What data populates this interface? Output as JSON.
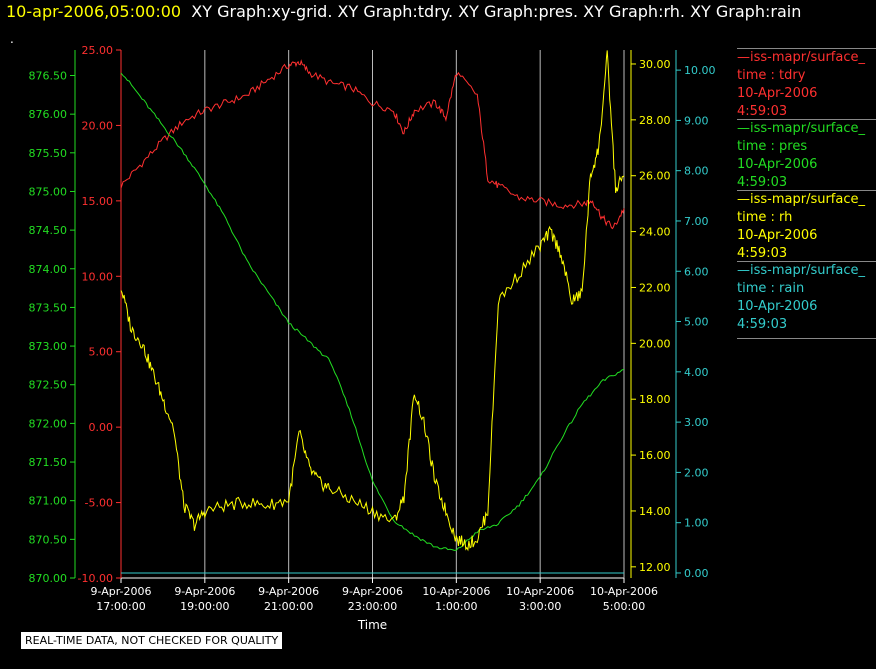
{
  "header": {
    "timestamp": "10-apr-2006,05:00:00",
    "titles": "XY Graph:xy-grid.  XY Graph:tdry.  XY Graph:pres.  XY Graph:rh.  XY Graph:rain"
  },
  "notice": "REAL-TIME DATA, NOT CHECKED FOR QUALITY",
  "legend": [
    {
      "source": "—iss-mapr/surface_",
      "label": "time : tdry",
      "date": "10-Apr-2006",
      "time": "4:59:03",
      "color": "#ff3030"
    },
    {
      "source": "—iss-mapr/surface_",
      "label": "time : pres",
      "date": "10-Apr-2006",
      "time": "4:59:03",
      "color": "#22dd22"
    },
    {
      "source": "—iss-mapr/surface_",
      "label": "time : rh",
      "date": "10-Apr-2006",
      "time": "4:59:03",
      "color": "#ffff00"
    },
    {
      "source": "—iss-mapr/surface_",
      "label": "time : rain",
      "date": "10-Apr-2006",
      "time": "4:59:03",
      "color": "#33cccc"
    }
  ],
  "chart_data": {
    "type": "line",
    "xlabel": "Time",
    "x_ticks": [
      {
        "date": "9-Apr-2006",
        "time": "17:00:00"
      },
      {
        "date": "9-Apr-2006",
        "time": "19:00:00"
      },
      {
        "date": "9-Apr-2006",
        "time": "21:00:00"
      },
      {
        "date": "9-Apr-2006",
        "time": "23:00:00"
      },
      {
        "date": "10-Apr-2006",
        "time": "1:00:00"
      },
      {
        "date": "10-Apr-2006",
        "time": "3:00:00"
      },
      {
        "date": "10-Apr-2006",
        "time": "5:00:00"
      }
    ],
    "x_hours": [
      17,
      19,
      21,
      23,
      25,
      27,
      29
    ],
    "xlim": [
      17,
      29
    ],
    "grid": "vertical",
    "axes": {
      "tdry": {
        "color": "#ff3030",
        "ylim": [
          -10,
          25
        ],
        "ticks": [
          "-10.00",
          "-5.00",
          "0.00",
          "5.00",
          "10.00",
          "15.00",
          "20.00",
          "25.00"
        ],
        "tick_values": [
          -10,
          -5,
          0,
          5,
          10,
          15,
          20,
          25
        ]
      },
      "pres": {
        "color": "#22dd22",
        "ylim": [
          870,
          876.83
        ],
        "ticks": [
          "870.00",
          "870.50",
          "871.00",
          "871.50",
          "872.00",
          "872.50",
          "873.00",
          "873.50",
          "874.00",
          "874.50",
          "875.00",
          "875.50",
          "876.00",
          "876.50"
        ],
        "tick_values": [
          870,
          870.5,
          871,
          871.5,
          872,
          872.5,
          873,
          873.5,
          874,
          874.5,
          875,
          875.5,
          876,
          876.5
        ]
      },
      "rh": {
        "color": "#ffff00",
        "ylim": [
          11.6,
          30.5
        ],
        "ticks": [
          "12.00",
          "14.00",
          "16.00",
          "18.00",
          "20.00",
          "22.00",
          "24.00",
          "26.00",
          "28.00",
          "30.00"
        ],
        "tick_values": [
          12,
          14,
          16,
          18,
          20,
          22,
          24,
          26,
          28,
          30
        ]
      },
      "rain": {
        "color": "#33cccc",
        "ylim": [
          -0.1,
          10.4
        ],
        "ticks": [
          "0.00",
          "1.00",
          "2.00",
          "3.00",
          "4.00",
          "5.00",
          "6.00",
          "7.00",
          "8.00",
          "9.00",
          "10.00"
        ],
        "tick_values": [
          0,
          1,
          2,
          3,
          4,
          5,
          6,
          7,
          8,
          9,
          10
        ]
      }
    },
    "series": [
      {
        "name": "time : tdry",
        "axis": "tdry",
        "x": [
          17,
          17.5,
          18,
          18.5,
          19,
          19.5,
          20,
          20.5,
          21,
          21.25,
          21.5,
          22,
          22.5,
          23,
          23.5,
          23.75,
          24,
          24.5,
          24.75,
          25,
          25.5,
          25.75,
          26,
          26.5,
          27,
          27.5,
          28,
          28.25,
          28.5,
          28.75,
          29
        ],
        "values": [
          16,
          17.5,
          19,
          20.3,
          21,
          21.5,
          22,
          23,
          24,
          24.2,
          23.5,
          22.8,
          22.5,
          21.5,
          21,
          19.5,
          21,
          21.5,
          20.5,
          23.5,
          22,
          16.5,
          16,
          15.2,
          15,
          14.7,
          14.8,
          15,
          13.8,
          13.2,
          14.5
        ]
      },
      {
        "name": "time : pres",
        "axis": "pres",
        "x": [
          17,
          17.5,
          18,
          18.5,
          19,
          19.5,
          20,
          20.5,
          21,
          21.5,
          22,
          22.5,
          23,
          23.5,
          24,
          24.5,
          25,
          25.5,
          26,
          26.5,
          27,
          27.5,
          28,
          28.5,
          29
        ],
        "values": [
          876.55,
          876.2,
          875.85,
          875.5,
          875.1,
          874.65,
          874.1,
          873.7,
          873.3,
          873.05,
          872.8,
          872.1,
          871.25,
          870.75,
          870.55,
          870.4,
          870.35,
          870.6,
          870.7,
          870.95,
          871.3,
          871.8,
          872.25,
          872.55,
          872.7
        ]
      },
      {
        "name": "time : rh",
        "axis": "rh",
        "x": [
          17,
          17.25,
          17.5,
          17.75,
          18,
          18.25,
          18.5,
          18.75,
          19,
          19.5,
          20,
          20.5,
          21,
          21.25,
          21.5,
          21.75,
          22,
          22.5,
          23,
          23.5,
          23.75,
          24,
          24.25,
          24.5,
          24.75,
          25,
          25.25,
          25.5,
          25.75,
          26,
          26.5,
          27,
          27.25,
          27.5,
          27.75,
          28,
          28.2,
          28.4,
          28.6,
          28.8,
          29
        ],
        "values": [
          22,
          20.5,
          20,
          19,
          18,
          17,
          14.2,
          13.5,
          14,
          14.2,
          14.3,
          14.2,
          14.4,
          16.8,
          15.5,
          15,
          14.8,
          14.4,
          14,
          13.6,
          14.5,
          18.3,
          17,
          15,
          14,
          13,
          12.8,
          13,
          14,
          21.5,
          22.5,
          23.5,
          24,
          23.2,
          21.5,
          21.8,
          26,
          27,
          30.3,
          25.5,
          26
        ]
      },
      {
        "name": "time : rain",
        "axis": "rain",
        "x": [
          17,
          29
        ],
        "values": [
          0,
          0
        ]
      }
    ]
  }
}
